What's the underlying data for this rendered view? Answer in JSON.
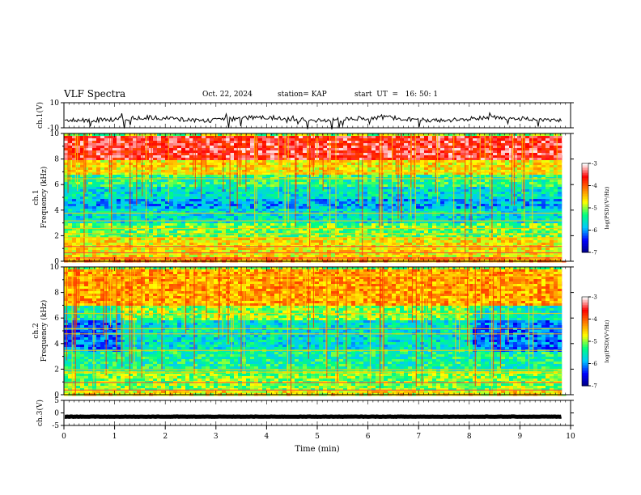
{
  "header": {
    "title": "VLF Spectra",
    "date": "Oct. 22, 2024",
    "station": "station= KAP",
    "start": "start  UT  =   16: 50: 1"
  },
  "chart_data": [
    {
      "type": "line",
      "panel": "ch1-waveform",
      "ylabel": "ch.1(V)",
      "ylim": [
        -10,
        10
      ],
      "yticks": [
        "10",
        "-10"
      ],
      "trace_color": "#000000",
      "description_level": "noisy trace near -3 V with spikes to about -9 V"
    },
    {
      "type": "heatmap",
      "panel": "ch1-spectrogram",
      "ylabel": "ch.1\nFrequency (kHz)",
      "ylim": [
        0,
        10
      ],
      "yticks": [
        "0",
        "2",
        "4",
        "6",
        "8",
        "10"
      ],
      "xlim": [
        0,
        9.83
      ],
      "colorbar": {
        "label": "log(PSD)(V²/Hz)",
        "range": [
          -7,
          -3
        ],
        "ticks": [
          "-3",
          "-4",
          "-5",
          "-6",
          "-7"
        ],
        "colors": [
          "#000080",
          "#0000ff",
          "#00c8ff",
          "#00ff80",
          "#ffff00",
          "#ff8000",
          "#ff0000",
          "#ffffff"
        ]
      },
      "bands_kHz": [
        {
          "from": 8.0,
          "to": 10.0,
          "level": -3.5
        },
        {
          "from": 6.8,
          "to": 8.0,
          "level": -4.6
        },
        {
          "from": 6.0,
          "to": 6.8,
          "level": -5.3
        },
        {
          "from": 5.0,
          "to": 6.0,
          "level": -5.6
        },
        {
          "from": 4.2,
          "to": 5.0,
          "level": -5.9
        },
        {
          "from": 3.0,
          "to": 4.2,
          "level": -5.6
        },
        {
          "from": 2.0,
          "to": 3.0,
          "level": -5.1
        },
        {
          "from": 0.5,
          "to": 2.0,
          "level": -4.6
        },
        {
          "from": 0.0,
          "to": 0.5,
          "level": -4.2
        }
      ],
      "lines_kHz": [
        0.3,
        0.7,
        1.2,
        1.9,
        2.2,
        2.6,
        3.2,
        3.8,
        6.5,
        7.0
      ]
    },
    {
      "type": "heatmap",
      "panel": "ch2-spectrogram",
      "ylabel": "ch.2\nFrequency (kHz)",
      "ylim": [
        0,
        10
      ],
      "yticks": [
        "0",
        "2",
        "4",
        "6",
        "8",
        "10"
      ],
      "xlim": [
        0,
        9.83
      ],
      "colorbar": {
        "label": "log(PSD)(V²/Hz)",
        "range": [
          -7,
          -3
        ],
        "ticks": [
          "-3",
          "-4",
          "-5",
          "-6",
          "-7"
        ],
        "colors": [
          "#000080",
          "#0000ff",
          "#00c8ff",
          "#00ff80",
          "#ffff00",
          "#ff8000",
          "#ff0000",
          "#ffffff"
        ]
      },
      "bands_kHz": [
        {
          "from": 7.0,
          "to": 10.0,
          "level": -4.3
        },
        {
          "from": 6.0,
          "to": 7.0,
          "level": -5.0
        },
        {
          "from": 3.6,
          "to": 6.0,
          "level": -5.6
        },
        {
          "from": 2.0,
          "to": 3.6,
          "level": -5.4
        },
        {
          "from": 0.5,
          "to": 2.0,
          "level": -5.0
        },
        {
          "from": 0.0,
          "to": 0.5,
          "level": -4.6
        }
      ],
      "quiet_intervals_min": [
        [
          0.0,
          1.1
        ],
        [
          8.0,
          9.83
        ]
      ],
      "lines_kHz": [
        0.4,
        1.0,
        1.8,
        2.0,
        3.5,
        4.8,
        5.2,
        6.4,
        9.3
      ]
    },
    {
      "type": "line",
      "panel": "ch3-waveform",
      "ylabel": "ch.3(V)",
      "ylim": [
        -5,
        5
      ],
      "yticks": [
        "5",
        "0",
        "-5"
      ],
      "trace_color": "#000000",
      "description_level": "flat thick trace near -1.5 V"
    }
  ],
  "xaxis": {
    "label": "Time  (min)",
    "range": [
      0,
      10
    ],
    "ticks": [
      "0",
      "1",
      "2",
      "3",
      "4",
      "5",
      "6",
      "7",
      "8",
      "9",
      "10"
    ]
  }
}
